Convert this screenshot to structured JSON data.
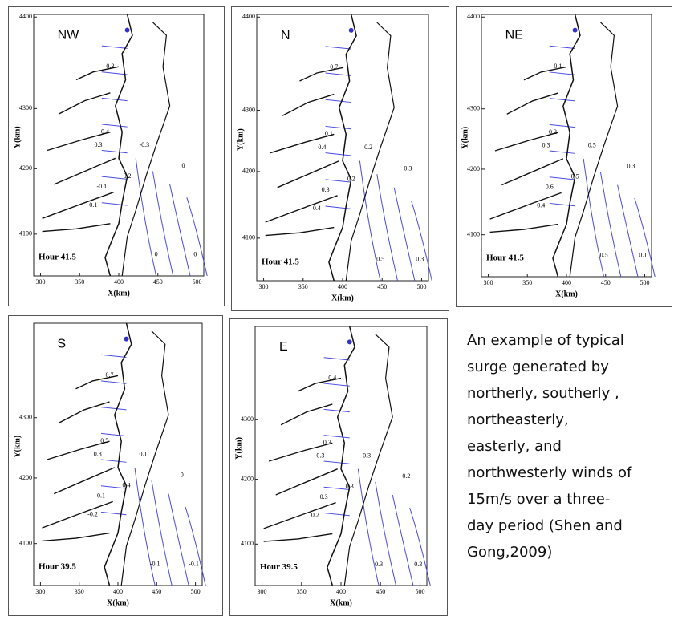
{
  "panels": [
    {
      "label": "NW",
      "hour": "Hour  41.5",
      "x_axis_label": "X(km)",
      "y_axis_label": "Y(km)",
      "x_ticks": [
        "300",
        "350",
        "400",
        "450",
        "500"
      ],
      "y_ticks": [
        "4400",
        "4300",
        "4200",
        "4100"
      ],
      "contour_labels": [
        "0.3",
        "0.4",
        "0.3",
        "-0.3",
        "-0.1",
        "0.1",
        "0.2",
        "0",
        "0",
        "0"
      ]
    },
    {
      "label": "N",
      "hour": "Hour  41.5",
      "x_axis_label": "X(km)",
      "y_axis_label": "Y(km)",
      "x_ticks": [
        "300",
        "350",
        "400",
        "450",
        "500"
      ],
      "y_ticks": [
        "4400",
        "4300",
        "4200",
        "4100"
      ],
      "contour_labels": [
        "0.7",
        "0.1",
        "0.4",
        "0.2",
        "0.3",
        "0.4",
        "0.2",
        "0.3",
        "0.5",
        "0.3"
      ]
    },
    {
      "label": "NE",
      "hour": "Hour  41.5",
      "x_axis_label": "X(km)",
      "y_axis_label": "Y(km)",
      "x_ticks": [
        "300",
        "350",
        "400",
        "450",
        "500"
      ],
      "y_ticks": [
        "4400",
        "4300",
        "4200",
        "4100"
      ],
      "contour_labels": [
        "0.1",
        "0.2",
        "0.3",
        "0.5",
        "0.6",
        "0.4",
        "0.5",
        "0.3",
        "0.5",
        "0.1"
      ]
    },
    {
      "label": "S",
      "hour": "Hour  39.5",
      "x_axis_label": "X(km)",
      "y_axis_label": "Y(km)",
      "x_ticks": [
        "300",
        "350",
        "400",
        "450",
        "500"
      ],
      "y_ticks": [
        "4300",
        "4200",
        "4100"
      ],
      "contour_labels": [
        "0.7",
        "0.5",
        "0.3",
        "0.1",
        "0.1",
        "-0.2",
        "0.4",
        "0",
        "-0.1",
        "-0.1"
      ]
    },
    {
      "label": "E",
      "hour": "Hour  39.5",
      "x_axis_label": "X(km)",
      "y_axis_label": "Y(km)",
      "x_ticks": [
        "300",
        "350",
        "400",
        "450",
        "500"
      ],
      "y_ticks": [
        "4300",
        "4200",
        "4100"
      ],
      "contour_labels": [
        "0.4",
        "0.3",
        "0.3",
        "0.3",
        "0.3",
        "0.2",
        "0.3",
        "0.2",
        "0.3",
        "0.3"
      ]
    }
  ],
  "caption": {
    "lines": [
      "An example of typical",
      "surge generated by",
      "northerly, southerly ,",
      "northeasterly,",
      "easterly, and",
      "northwesterly winds of",
      "15m/s over a three-",
      "day period (Shen and",
      "Gong,2009)"
    ]
  }
}
